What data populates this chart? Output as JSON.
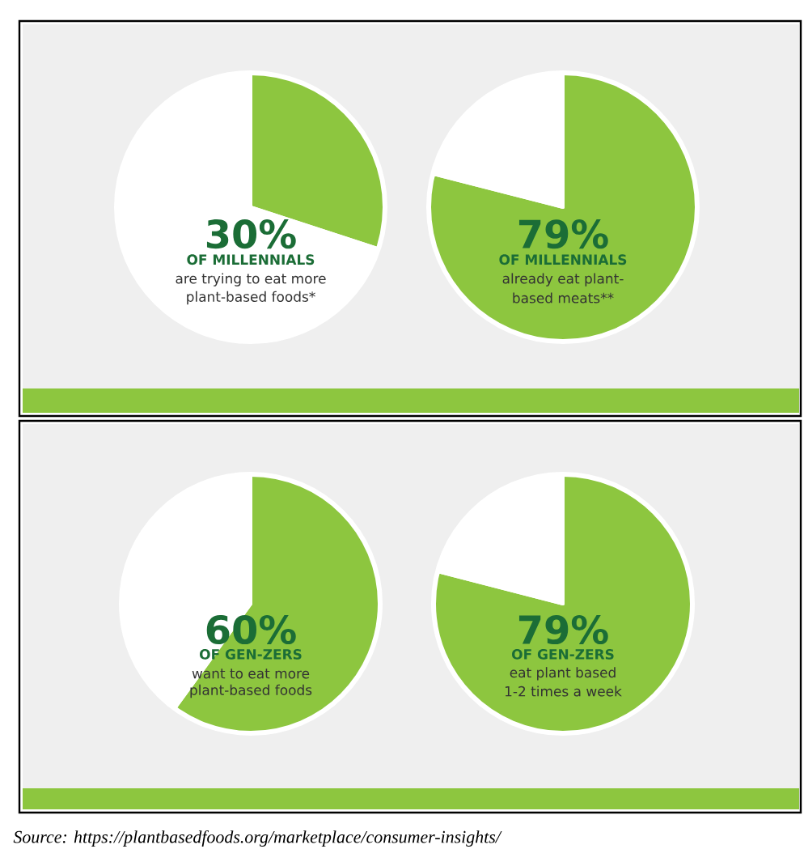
{
  "chart_data": [
    {
      "type": "pie",
      "categories": [
        null,
        null
      ],
      "values": [
        30,
        70
      ],
      "colors": [
        "#8dc63f",
        "#ffffff"
      ],
      "annotations": [
        "30%",
        "OF MILLENNIALS",
        "are trying to eat more",
        "plant-based foods*"
      ]
    },
    {
      "type": "pie",
      "categories": [
        null,
        null
      ],
      "values": [
        79,
        21
      ],
      "colors": [
        "#8dc63f",
        "#ffffff"
      ],
      "annotations": [
        "79%",
        "OF MILLENNIALS",
        "already eat plant-",
        "based meats**"
      ]
    },
    {
      "type": "pie",
      "categories": [
        null,
        null
      ],
      "values": [
        60,
        40
      ],
      "colors": [
        "#8dc63f",
        "#ffffff"
      ],
      "annotations": [
        "60%",
        "OF GEN-ZERS",
        "want to eat more",
        "plant-based foods"
      ]
    },
    {
      "type": "pie",
      "categories": [
        null,
        null
      ],
      "values": [
        79,
        21
      ],
      "colors": [
        "#8dc63f",
        "#ffffff"
      ],
      "annotations": [
        "79%",
        "OF GEN-ZERS",
        "eat plant based",
        "1-2 times a week"
      ]
    },
    {
      "type": "other",
      "annotations": [
        "Source: https://plantbasedfoods.org/marketplace/consumer-insights/"
      ]
    }
  ]
}
